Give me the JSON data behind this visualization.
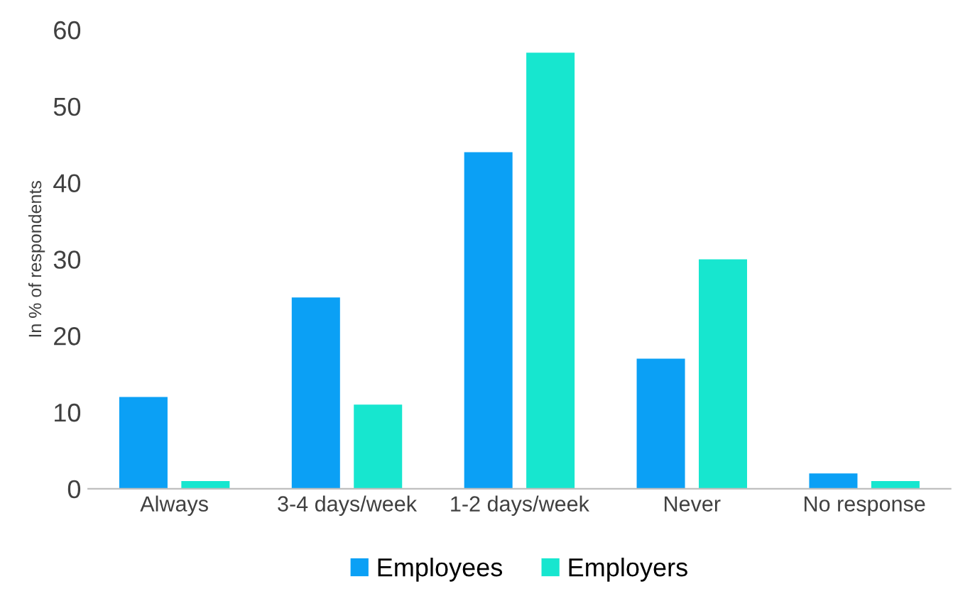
{
  "chart_data": {
    "type": "bar",
    "ylabel": "In % of respondents",
    "categories": [
      "Always",
      "3-4 days/week",
      "1-2 days/week",
      "Never",
      "No response"
    ],
    "series": [
      {
        "name": "Employees",
        "color": "#0ba0f5",
        "values": [
          12,
          25,
          44,
          17,
          2
        ]
      },
      {
        "name": "Employers",
        "color": "#17e6cf",
        "values": [
          1,
          11,
          57,
          30,
          1
        ]
      }
    ],
    "ylim": [
      0,
      60
    ],
    "yticks": [
      0,
      10,
      20,
      30,
      40,
      50,
      60
    ],
    "grid": false,
    "legend": "bottom"
  }
}
